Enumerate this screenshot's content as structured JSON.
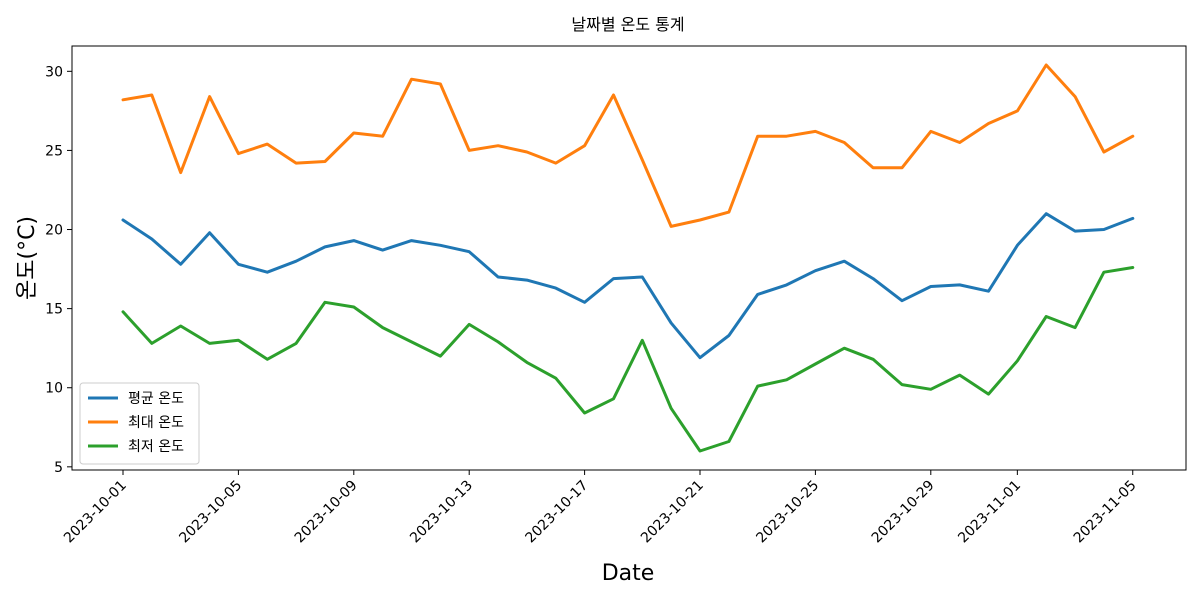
{
  "chart_data": {
    "type": "line",
    "title": "날짜별 온도 통계",
    "xlabel": "Date",
    "ylabel": "온도(°C)",
    "x": [
      "2023-10-01",
      "2023-10-02",
      "2023-10-03",
      "2023-10-04",
      "2023-10-05",
      "2023-10-06",
      "2023-10-07",
      "2023-10-08",
      "2023-10-09",
      "2023-10-10",
      "2023-10-11",
      "2023-10-12",
      "2023-10-13",
      "2023-10-14",
      "2023-10-15",
      "2023-10-16",
      "2023-10-17",
      "2023-10-18",
      "2023-10-19",
      "2023-10-20",
      "2023-10-21",
      "2023-10-22",
      "2023-10-23",
      "2023-10-24",
      "2023-10-25",
      "2023-10-26",
      "2023-10-27",
      "2023-10-28",
      "2023-10-29",
      "2023-10-30",
      "2023-10-31",
      "2023-11-01",
      "2023-11-02",
      "2023-11-03",
      "2023-11-04",
      "2023-11-05"
    ],
    "x_ticks": [
      "2023-10-01",
      "2023-10-05",
      "2023-10-09",
      "2023-10-13",
      "2023-10-17",
      "2023-10-21",
      "2023-10-25",
      "2023-10-29",
      "2023-11-01",
      "2023-11-05"
    ],
    "y_ticks": [
      5,
      10,
      15,
      20,
      25,
      30
    ],
    "ylim": [
      4.8,
      31.6
    ],
    "grid": false,
    "legend_position": "lower-left",
    "series": [
      {
        "name": "평균 온도",
        "color": "#1f77b4",
        "values": [
          20.6,
          19.4,
          17.8,
          19.8,
          17.8,
          17.3,
          18.0,
          18.9,
          19.3,
          18.7,
          19.3,
          19.0,
          18.6,
          17.0,
          16.8,
          16.3,
          15.4,
          16.9,
          17.0,
          14.1,
          11.9,
          13.3,
          15.9,
          16.5,
          17.4,
          18.0,
          16.9,
          15.5,
          16.4,
          16.5,
          16.1,
          19.0,
          21.0,
          19.9,
          20.0,
          20.7
        ]
      },
      {
        "name": "최대 온도",
        "color": "#ff7f0e",
        "values": [
          28.2,
          28.5,
          23.6,
          28.4,
          24.8,
          25.4,
          24.2,
          24.3,
          26.1,
          25.9,
          29.5,
          29.2,
          25.0,
          25.3,
          24.9,
          24.2,
          25.3,
          28.5,
          24.4,
          20.2,
          20.6,
          21.1,
          25.9,
          25.9,
          26.2,
          25.5,
          23.9,
          23.9,
          26.2,
          25.5,
          26.7,
          27.5,
          30.4,
          28.4,
          24.9,
          25.9
        ]
      },
      {
        "name": "최저 온도",
        "color": "#2ca02c",
        "values": [
          14.8,
          12.8,
          13.9,
          12.8,
          13.0,
          11.8,
          12.8,
          15.4,
          15.1,
          13.8,
          12.9,
          12.0,
          14.0,
          12.9,
          11.6,
          10.6,
          8.4,
          9.3,
          13.0,
          8.7,
          6.0,
          6.6,
          10.1,
          10.5,
          11.5,
          12.5,
          11.8,
          10.2,
          9.9,
          10.8,
          9.6,
          11.7,
          14.5,
          13.8,
          17.3,
          17.6
        ]
      }
    ]
  }
}
